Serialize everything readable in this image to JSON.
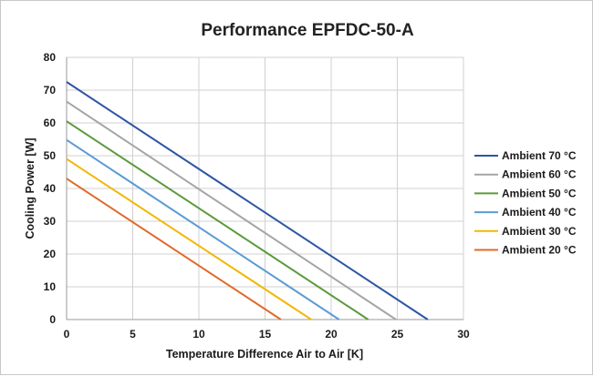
{
  "chart_data": {
    "type": "line",
    "title": "Performance EPFDC-50-A",
    "xlabel": "Temperature Difference Air to Air [K]",
    "ylabel": "Cooling Power [W]",
    "xlim": [
      0,
      30
    ],
    "ylim": [
      0,
      80
    ],
    "xticks": [
      0,
      5,
      10,
      15,
      20,
      25,
      30
    ],
    "yticks": [
      0,
      10,
      20,
      30,
      40,
      50,
      60,
      70,
      80
    ],
    "grid": true,
    "legend_position": "right",
    "series": [
      {
        "name": "Ambient 70 °C",
        "color": "#2e55a5",
        "x": [
          0,
          27.3
        ],
        "y": [
          72.5,
          0
        ]
      },
      {
        "name": "Ambient 60 °C",
        "color": "#a5a5a5",
        "x": [
          0,
          24.9
        ],
        "y": [
          66.5,
          0
        ]
      },
      {
        "name": "Ambient 50 °C",
        "color": "#5b9a3a",
        "x": [
          0,
          22.8
        ],
        "y": [
          60.5,
          0
        ]
      },
      {
        "name": "Ambient 40 °C",
        "color": "#5b9bd5",
        "x": [
          0,
          20.6
        ],
        "y": [
          54.8,
          0
        ]
      },
      {
        "name": "Ambient 30 °C",
        "color": "#f2b705",
        "x": [
          0,
          18.5
        ],
        "y": [
          49,
          0
        ]
      },
      {
        "name": "Ambient 20 °C",
        "color": "#e06a2a",
        "x": [
          0,
          16.2
        ],
        "y": [
          43,
          0
        ]
      }
    ]
  }
}
